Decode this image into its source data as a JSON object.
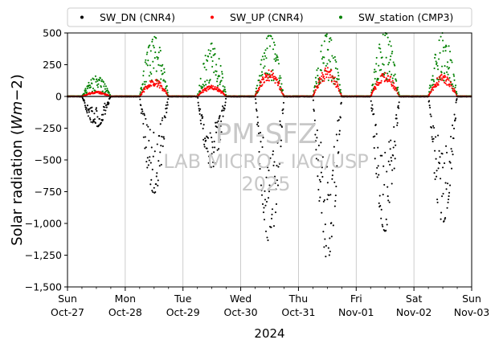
{
  "chart_data": {
    "type": "scatter",
    "xlabel": "2024",
    "ylabel": "Solar radiation (Wm−2)",
    "ylabel_main": "Solar radiation (",
    "ylabel_unit_italic": "Wm",
    "ylabel_unit_rest": "−2)",
    "ylim": [
      -1500,
      500
    ],
    "yticks": [
      500,
      250,
      0,
      -250,
      -500,
      -750,
      -1000,
      -1250,
      -1500
    ],
    "xlim": [
      "2024-10-27",
      "2024-11-03"
    ],
    "xticks": [
      {
        "day": "Sun",
        "date": "Oct-27"
      },
      {
        "day": "Mon",
        "date": "Oct-28"
      },
      {
        "day": "Tue",
        "date": "Oct-29"
      },
      {
        "day": "Wed",
        "date": "Oct-30"
      },
      {
        "day": "Thu",
        "date": "Oct-31"
      },
      {
        "day": "Fri",
        "date": "Nov-01"
      },
      {
        "day": "Sat",
        "date": "Nov-02"
      },
      {
        "day": "Sun",
        "date": "Nov-03"
      }
    ],
    "grid": "vertical",
    "zero_line": true,
    "legend_position": "top",
    "series": [
      {
        "name": "SW_DN (CNR4)",
        "color": "#000000",
        "daily_min": [
          -240,
          -760,
          -560,
          -1150,
          -1280,
          -1060,
          -990
        ]
      },
      {
        "name": "SW_UP (CNR4)",
        "color": "#ff0000",
        "daily_max": [
          40,
          140,
          90,
          220,
          230,
          190,
          180
        ]
      },
      {
        "name": "SW_station (CMP3)",
        "color": "#008000",
        "daily_max": [
          160,
          470,
          420,
          480,
          490,
          500,
          500
        ]
      }
    ],
    "watermark": [
      "PM-SFZ",
      "LAB MICRO - IAG/USP",
      "2025"
    ]
  }
}
